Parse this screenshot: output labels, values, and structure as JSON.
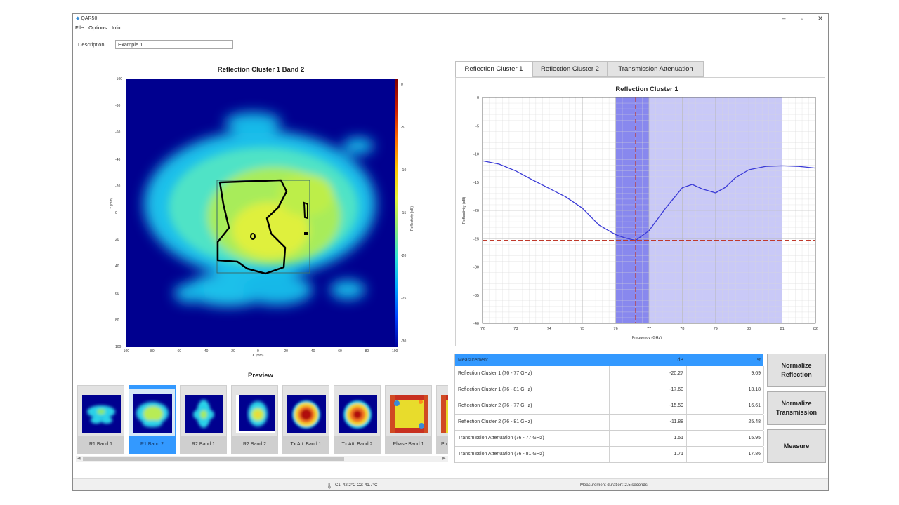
{
  "window": {
    "title": "QAR50",
    "minimize": "–",
    "maximize": "▫",
    "close": "✕"
  },
  "menu": [
    "File",
    "Options",
    "Info"
  ],
  "description": {
    "label": "Description:",
    "value": "Example 1"
  },
  "heatmap": {
    "title": "Reflection Cluster 1 Band 2",
    "xlabel": "X (mm)",
    "ylabel": "Y (mm)",
    "colorbar_label": "Reflectivity (dB)",
    "xticks": [
      "-100",
      "-80",
      "-60",
      "-40",
      "-20",
      "0",
      "20",
      "40",
      "60",
      "80",
      "100"
    ],
    "yticks": [
      "-100",
      "-80",
      "-60",
      "-40",
      "-20",
      "0",
      "20",
      "40",
      "60",
      "80",
      "100"
    ],
    "cticks": [
      "0",
      "-5",
      "-10",
      "-15",
      "-20",
      "-25",
      "-30"
    ],
    "colors": {
      "background": "#00008f",
      "cyan": "#29d9e8",
      "green": "#8fe86a",
      "yellow": "#e4f03c"
    }
  },
  "preview": {
    "title": "Preview",
    "items": [
      {
        "label": "R1 Band 1",
        "icon": "heatmap-thumb",
        "selected": false
      },
      {
        "label": "R1 Band 2",
        "icon": "heatmap-thumb",
        "selected": true
      },
      {
        "label": "R2 Band 1",
        "icon": "heatmap-thumb",
        "selected": false
      },
      {
        "label": "R2 Band 2",
        "icon": "heatmap-thumb",
        "selected": false
      },
      {
        "label": "Tx Att. Band 1",
        "icon": "heatmap-thumb",
        "selected": false
      },
      {
        "label": "Tx Att. Band 2",
        "icon": "heatmap-thumb",
        "selected": false
      },
      {
        "label": "Phase Band 1",
        "icon": "heatmap-thumb",
        "selected": false
      },
      {
        "label": "Ph",
        "icon": "heatmap-thumb",
        "selected": false
      }
    ]
  },
  "tabs": [
    {
      "label": "Reflection Cluster 1",
      "active": true
    },
    {
      "label": "Reflection Cluster 2",
      "active": false
    },
    {
      "label": "Transmission Attenuation",
      "active": false
    }
  ],
  "chart_data": {
    "type": "line",
    "title": "Reflection Cluster 1",
    "xlabel": "Frequency (GHz)",
    "ylabel": "Reflectivity (dB)",
    "xlim": [
      72,
      82
    ],
    "ylim": [
      -40,
      0
    ],
    "xticks": [
      "72",
      "73",
      "74",
      "75",
      "76",
      "77",
      "78",
      "79",
      "80",
      "81",
      "82"
    ],
    "yticks": [
      "0",
      "-5",
      "-10",
      "-15",
      "-20",
      "-25",
      "-30",
      "-35",
      "-40"
    ],
    "grid": true,
    "band_narrow": [
      76,
      77
    ],
    "band_wide": [
      76,
      81
    ],
    "marker_x": 76.6,
    "marker_y": -25.3,
    "series": [
      {
        "name": "Reflectivity",
        "x": [
          72,
          72.5,
          73,
          73.5,
          74,
          74.5,
          75,
          75.5,
          76,
          76.3,
          76.6,
          77,
          77.5,
          78,
          78.3,
          78.6,
          79,
          79.3,
          79.6,
          80,
          80.5,
          81,
          81.5,
          82
        ],
        "values": [
          -11.2,
          -11.8,
          -13.0,
          -14.6,
          -16.1,
          -17.6,
          -19.6,
          -22.6,
          -24.3,
          -24.9,
          -25.3,
          -23.6,
          -19.6,
          -16.0,
          -15.4,
          -16.2,
          -16.9,
          -15.9,
          -14.2,
          -12.8,
          -12.2,
          -12.1,
          -12.2,
          -12.5
        ]
      }
    ],
    "colors": {
      "line": "#3a3ad6",
      "marker": "#c0392b",
      "band_narrow": "#8888ee",
      "band_wide": "#c9c9f7"
    }
  },
  "table": {
    "headers": {
      "measurement": "Measurement",
      "db": "dB",
      "pct": "%"
    },
    "rows": [
      {
        "name": "Reflection Cluster 1 (76 - 77 GHz)",
        "db": "-20.27",
        "pct": "9.69"
      },
      {
        "name": "Reflection Cluster 1 (76 - 81 GHz)",
        "db": "-17.60",
        "pct": "13.18"
      },
      {
        "name": "Reflection Cluster 2 (76 - 77 GHz)",
        "db": "-15.59",
        "pct": "16.61"
      },
      {
        "name": "Reflection Cluster 2 (76 - 81 GHz)",
        "db": "-11.88",
        "pct": "25.48"
      },
      {
        "name": "Transmission Attenuation (76 - 77 GHz)",
        "db": "1.51",
        "pct": "15.95"
      },
      {
        "name": "Transmission Attenuation (76 - 81 GHz)",
        "db": "1.71",
        "pct": "17.86"
      }
    ]
  },
  "buttons": {
    "normalize_reflection": "Normalize Reflection",
    "normalize_transmission": "Normalize Transmission",
    "measure": "Measure"
  },
  "status": {
    "temps": "C1: 42.2°C   C2: 41.7°C",
    "duration": "Measurement duration: 2.5 seconds",
    "thermometer_icon": "🌡"
  }
}
